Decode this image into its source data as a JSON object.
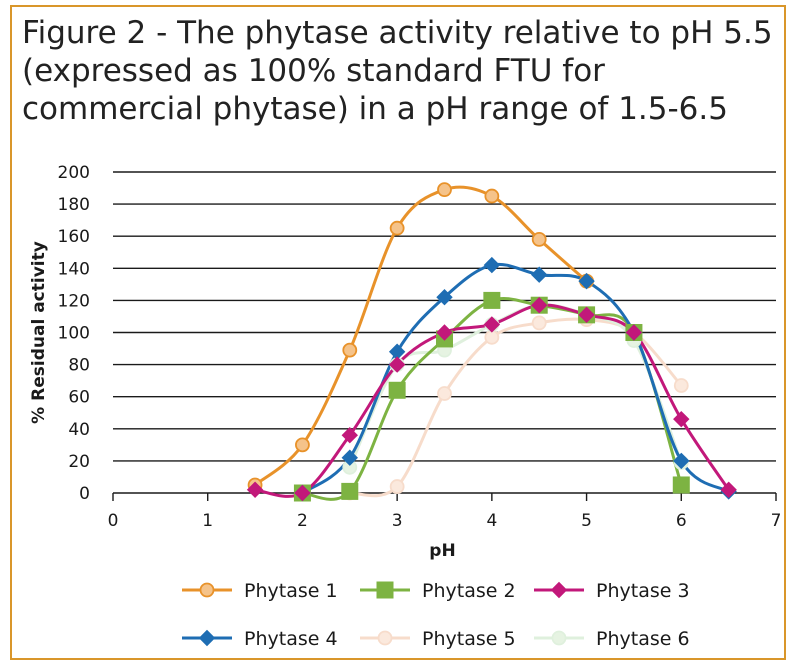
{
  "figure": {
    "title_lines": [
      "Figure 2 - The phytase activity relative to pH 5.5",
      "(expressed as 100% standard FTU for",
      "commercial phytase) in a pH range of 1.5-6.5"
    ]
  },
  "colors": {
    "frame": "#d9962a",
    "grid": "#1a1a1a"
  },
  "chart_data": {
    "type": "line",
    "title": "Figure 2 - The phytase activity relative to pH 5.5 (expressed as 100% standard FTU for commercial phytase) in a pH range of 1.5-6.5",
    "xlabel": "pH",
    "ylabel": "% Residual activity",
    "xlim": [
      0,
      7
    ],
    "ylim": [
      0,
      200
    ],
    "xticks": [
      "0",
      "1",
      "2",
      "3",
      "4",
      "5",
      "6",
      "7"
    ],
    "yticks": [
      "0",
      "20",
      "40",
      "60",
      "80",
      "100",
      "120",
      "140",
      "160",
      "180",
      "200"
    ],
    "grid": "horizontal",
    "legend_position": "bottom",
    "x": [
      1.5,
      2,
      2.5,
      3,
      3.5,
      4,
      4.5,
      5,
      5.5,
      6,
      6.5
    ],
    "series": [
      {
        "name": "Phytase 1",
        "color": "#e8922a",
        "fill": "#f5c38a",
        "marker": "circle",
        "values": [
          5,
          30,
          89,
          165,
          189,
          185,
          158,
          132,
          null,
          null,
          null
        ]
      },
      {
        "name": "Phytase 2",
        "color": "#7db342",
        "fill": "#7db342",
        "marker": "square",
        "values": [
          null,
          0,
          1,
          64,
          96,
          120,
          117,
          111,
          100,
          5,
          null
        ]
      },
      {
        "name": "Phytase 3",
        "color": "#c2187a",
        "fill": "#c2187a",
        "marker": "diamond",
        "values": [
          2,
          0,
          36,
          80,
          100,
          105,
          117,
          111,
          100,
          46,
          2
        ]
      },
      {
        "name": "Phytase 4",
        "color": "#1e6db3",
        "fill": "#1e6db3",
        "marker": "diamond",
        "values": [
          null,
          0,
          22,
          88,
          122,
          142,
          136,
          132,
          100,
          20,
          1
        ]
      },
      {
        "name": "Phytase 5",
        "color": "#f7dccb",
        "fill": "#fbe9dd",
        "marker": "circle",
        "values": [
          null,
          null,
          0,
          4,
          62,
          97,
          106,
          108,
          100,
          67,
          null
        ]
      },
      {
        "name": "Phytase 6",
        "color": "#dff0dd",
        "fill": "#e6f3e2",
        "marker": "circle",
        "values": [
          null,
          null,
          16,
          80,
          89,
          105,
          117,
          111,
          95,
          19,
          null
        ]
      }
    ]
  }
}
